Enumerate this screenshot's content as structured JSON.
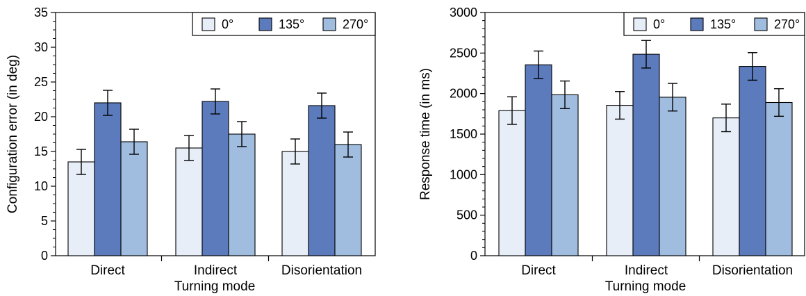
{
  "colors": {
    "s0": "#e8eef8",
    "s135": "#5b7bbd",
    "s270": "#a0bddf",
    "stroke": "#000000"
  },
  "chart_data": [
    {
      "type": "bar",
      "categories": [
        "Direct",
        "Indirect",
        "Disorientation"
      ],
      "series": [
        {
          "name": "0°",
          "values": [
            13.5,
            15.5,
            15.0
          ],
          "errors": [
            1.8,
            1.8,
            1.8
          ]
        },
        {
          "name": "135°",
          "values": [
            22.0,
            22.2,
            21.6
          ],
          "errors": [
            1.8,
            1.8,
            1.8
          ]
        },
        {
          "name": "270°",
          "values": [
            16.4,
            17.5,
            16.0
          ],
          "errors": [
            1.8,
            1.8,
            1.8
          ]
        }
      ],
      "xlabel": "Turning mode",
      "ylabel": "Configuration error (in deg)",
      "ylim": [
        0,
        35
      ],
      "yticks": [
        "0",
        "5",
        "10",
        "15",
        "20",
        "25",
        "30",
        "35"
      ],
      "legend": "top-right",
      "grid": false
    },
    {
      "type": "bar",
      "categories": [
        "Direct",
        "Indirect",
        "Disorientation"
      ],
      "series": [
        {
          "name": "0°",
          "values": [
            1790,
            1855,
            1700
          ],
          "errors": [
            170,
            170,
            170
          ]
        },
        {
          "name": "135°",
          "values": [
            2355,
            2485,
            2335
          ],
          "errors": [
            170,
            170,
            170
          ]
        },
        {
          "name": "270°",
          "values": [
            1985,
            1955,
            1890
          ],
          "errors": [
            170,
            170,
            170
          ]
        }
      ],
      "xlabel": "Turning mode",
      "ylabel": "Response time (in ms)",
      "ylim": [
        0,
        3000
      ],
      "yticks": [
        "0",
        "500",
        "1000",
        "1500",
        "2000",
        "2500",
        "3000"
      ],
      "legend": "top-right",
      "grid": false
    }
  ]
}
